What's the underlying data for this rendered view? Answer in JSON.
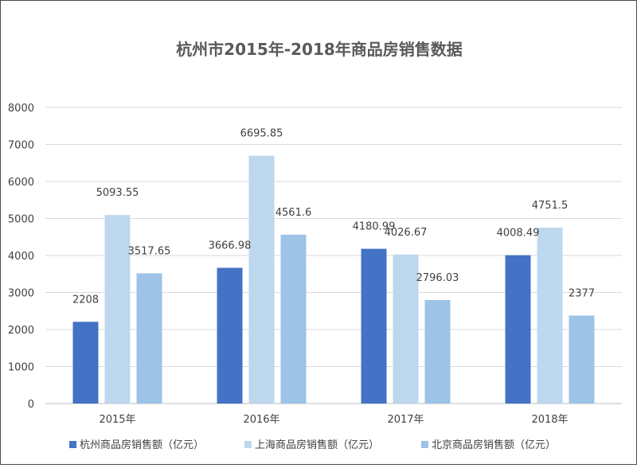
{
  "chart_data": {
    "type": "bar",
    "title": "杭州市2015年-2018年商品房销售数据",
    "xlabel": "",
    "ylabel": "",
    "categories": [
      "2015年",
      "2016年",
      "2017年",
      "2018年"
    ],
    "ylim": [
      0,
      8000
    ],
    "yticks": [
      "0",
      "1000",
      "2000",
      "3000",
      "4000",
      "5000",
      "6000",
      "7000",
      "8000"
    ],
    "grid": true,
    "legend_position": "bottom",
    "series": [
      {
        "name": "杭州商品房销售额（亿元）",
        "color": "#4472C4",
        "values": [
          2208,
          3666.98,
          4180.99,
          4008.49
        ],
        "labels": [
          "2208",
          "3666.98",
          "4180.99",
          "4008.49"
        ]
      },
      {
        "name": "上海商品房销售额（亿元）",
        "color": "#BDD7EE",
        "values": [
          5093.55,
          6695.85,
          4026.67,
          4751.5
        ],
        "labels": [
          "5093.55",
          "6695.85",
          "4026.67",
          "4751.5"
        ]
      },
      {
        "name": "北京商品房销售额（亿元）",
        "color": "#9DC3E6",
        "values": [
          3517.65,
          4561.6,
          2796.03,
          2377
        ],
        "labels": [
          "3517.65",
          "4561.6",
          "2796.03",
          "2377"
        ]
      }
    ]
  }
}
